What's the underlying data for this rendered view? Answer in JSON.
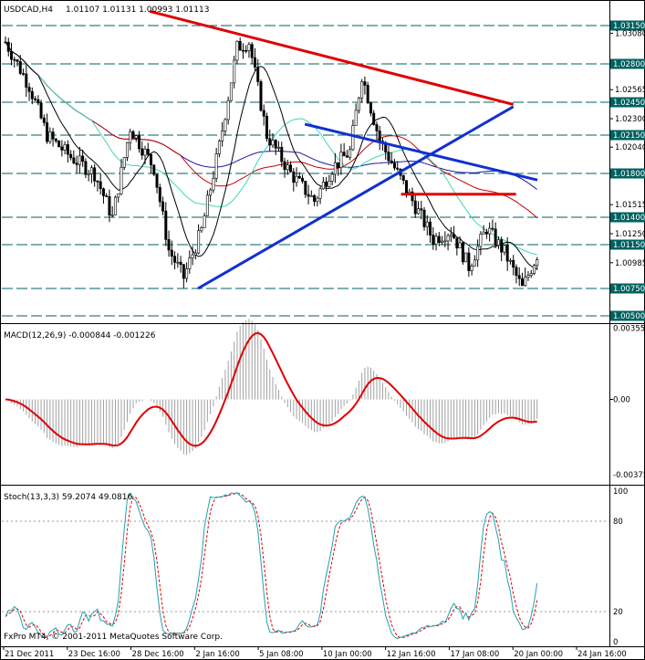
{
  "chart_data": {
    "type": "candlestick",
    "symbol_label": "USDCAD,H4",
    "ohlc_label": "1.01107 1.01131 1.00993 1.01113",
    "copyright": "FxPro MT4, © 2001-2011 MetaQuotes Software Corp.",
    "x_ticks": [
      "21 Dec 2011",
      "23 Dec 16:00",
      "28 Dec 16:00",
      "2 Jan 16:00",
      "5 Jan 08:00",
      "10 Jan 00:00",
      "12 Jan 16:00",
      "17 Jan 08:00",
      "20 Jan 00:00",
      "24 Jan 16:00"
    ],
    "price_axis": {
      "range": [
        1.0045,
        1.0325
      ],
      "ticks": [
        "1.03080",
        "1.02565",
        "1.02300",
        "1.02040",
        "1.01515",
        "1.01250",
        "1.00985"
      ],
      "highlighted_levels": [
        "1.03150",
        "1.02800",
        "1.02450",
        "1.02150",
        "1.01800",
        "1.01400",
        "1.01150",
        "1.00750",
        "1.00500"
      ]
    },
    "macd": {
      "label": "MACD(12,26,9) -0.000844 -0.001226",
      "range": [
        -0.0042,
        0.0037
      ],
      "ticks": [
        "0.00355",
        "0.00",
        "-0.00375"
      ]
    },
    "stoch": {
      "label": "Stoch(13,3,3) 59.2074 49.0816",
      "range": [
        -3,
        103
      ],
      "ticks": [
        "100",
        "80",
        "20",
        "0"
      ]
    },
    "trendlines": [
      {
        "color": "#e00000",
        "from": [
          0.27,
          1.0328
        ],
        "to": [
          0.95,
          1.0243
        ]
      },
      {
        "color": "#1030d0",
        "from": [
          0.36,
          1.0075
        ],
        "to": [
          0.95,
          1.0241
        ]
      },
      {
        "color": "#1030d0",
        "from": [
          0.56,
          1.0225
        ],
        "to": [
          0.995,
          1.0174
        ]
      },
      {
        "color": "#e00000",
        "from": [
          0.74,
          1.0161
        ],
        "to": [
          0.955,
          1.0161
        ]
      }
    ],
    "colors": {
      "candle": "#000000",
      "ma_black": "#000000",
      "ma_teal": "#40d8b0",
      "ma_red": "#c80000",
      "ma_navy": "#1a1aa0",
      "macd_signal": "#e00000",
      "macd_hist": "#a0a0a0",
      "stoch_main": "#20a0b0",
      "stoch_signal": "#e00000",
      "level_line": "#006060"
    }
  }
}
